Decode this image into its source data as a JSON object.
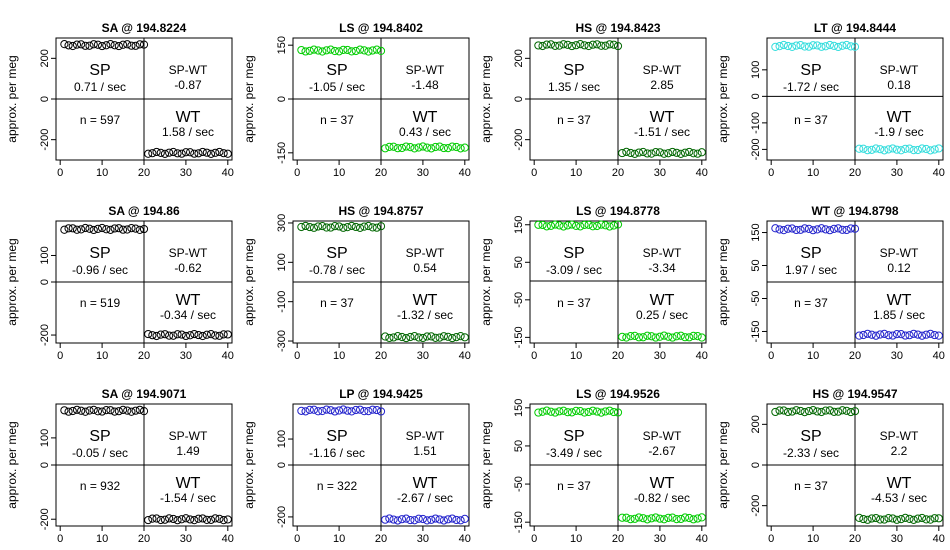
{
  "chart_data": [
    {
      "type": "scatter",
      "title": "SA @ 194.8224",
      "ylabel": "approx. per meg",
      "xlim": [
        -1,
        41
      ],
      "ylim": [
        -300,
        300
      ],
      "xticks": [
        0,
        10,
        20,
        30,
        40
      ],
      "yticks": [
        -200,
        0,
        200
      ],
      "left_level": 265,
      "right_level": -265,
      "left_color": "#000000",
      "right_color": "#000000",
      "sp_label": "SP",
      "sp_rate": "0.71 / sec",
      "spwt_label": "SP-WT",
      "spwt_value": "-0.87",
      "n_label": "n = 597",
      "wt_label": "WT",
      "wt_rate": "1.58 / sec"
    },
    {
      "type": "scatter",
      "title": "LS @ 194.8402",
      "ylabel": "approx. per meg",
      "xlim": [
        -1,
        41
      ],
      "ylim": [
        -170,
        170
      ],
      "xticks": [
        0,
        10,
        20,
        30,
        40
      ],
      "yticks": [
        -150,
        0,
        150
      ],
      "left_level": 135,
      "right_level": -135,
      "left_color": "#00cc00",
      "right_color": "#00cc00",
      "sp_label": "SP",
      "sp_rate": "-1.05 / sec",
      "spwt_label": "SP-WT",
      "spwt_value": "-1.48",
      "n_label": "n = 37",
      "wt_label": "WT",
      "wt_rate": "0.43 / sec"
    },
    {
      "type": "scatter",
      "title": "HS @ 194.8423",
      "ylabel": "approx. per meg",
      "xlim": [
        -1,
        41
      ],
      "ylim": [
        -300,
        300
      ],
      "xticks": [
        0,
        10,
        20,
        30,
        40
      ],
      "yticks": [
        -200,
        0,
        200
      ],
      "left_level": 265,
      "right_level": -265,
      "left_color": "#006600",
      "right_color": "#006600",
      "sp_label": "SP",
      "sp_rate": "1.35 / sec",
      "spwt_label": "SP-WT",
      "spwt_value": "2.85",
      "n_label": "n = 37",
      "wt_label": "WT",
      "wt_rate": "-1.51 / sec"
    },
    {
      "type": "scatter",
      "title": "LT @ 194.8444",
      "ylabel": "approx. per meg",
      "xlim": [
        -1,
        41
      ],
      "ylim": [
        -240,
        220
      ],
      "xticks": [
        0,
        10,
        20,
        30,
        40
      ],
      "yticks": [
        -200,
        -100,
        0,
        100
      ],
      "left_level": 190,
      "right_level": -200,
      "left_color": "#33dddd",
      "right_color": "#33dddd",
      "sp_label": "SP",
      "sp_rate": "-1.72 / sec",
      "spwt_label": "SP-WT",
      "spwt_value": "0.18",
      "n_label": "n = 37",
      "wt_label": "WT",
      "wt_rate": "-1.9 / sec"
    },
    {
      "type": "scatter",
      "title": "SA @ 194.86",
      "ylabel": "approx. per meg",
      "xlim": [
        -1,
        41
      ],
      "ylim": [
        -230,
        230
      ],
      "xticks": [
        0,
        10,
        20,
        30,
        40
      ],
      "yticks": [
        -200,
        0,
        100
      ],
      "left_level": 200,
      "right_level": -200,
      "left_color": "#000000",
      "right_color": "#000000",
      "sp_label": "SP",
      "sp_rate": "-0.96 / sec",
      "spwt_label": "SP-WT",
      "spwt_value": "-0.62",
      "n_label": "n = 519",
      "wt_label": "WT",
      "wt_rate": "-0.34 / sec"
    },
    {
      "type": "scatter",
      "title": "HS @ 194.8757",
      "ylabel": "approx. per meg",
      "xlim": [
        -1,
        41
      ],
      "ylim": [
        -310,
        310
      ],
      "xticks": [
        0,
        10,
        20,
        30,
        40
      ],
      "yticks": [
        -300,
        -100,
        100,
        300
      ],
      "left_level": 280,
      "right_level": -280,
      "left_color": "#006600",
      "right_color": "#006600",
      "sp_label": "SP",
      "sp_rate": "-0.78 / sec",
      "spwt_label": "SP-WT",
      "spwt_value": "0.54",
      "n_label": "n = 37",
      "wt_label": "WT",
      "wt_rate": "-1.32 / sec"
    },
    {
      "type": "scatter",
      "title": "LS @ 194.8778",
      "ylabel": "approx. per meg",
      "xlim": [
        -1,
        41
      ],
      "ylim": [
        -165,
        160
      ],
      "xticks": [
        0,
        10,
        20,
        30,
        40
      ],
      "yticks": [
        -150,
        -50,
        50,
        150
      ],
      "left_level": 148,
      "right_level": -148,
      "left_color": "#00cc00",
      "right_color": "#00cc00",
      "sp_label": "SP",
      "sp_rate": "-3.09 / sec",
      "spwt_label": "SP-WT",
      "spwt_value": "-3.34",
      "n_label": "n = 37",
      "wt_label": "WT",
      "wt_rate": "0.25 / sec"
    },
    {
      "type": "scatter",
      "title": "WT @ 194.8798",
      "ylabel": "approx. per meg",
      "xlim": [
        -1,
        41
      ],
      "ylim": [
        -185,
        185
      ],
      "xticks": [
        0,
        10,
        20,
        30,
        40
      ],
      "yticks": [
        -150,
        -50,
        50,
        150
      ],
      "left_level": 160,
      "right_level": -160,
      "left_color": "#2222cc",
      "right_color": "#2222cc",
      "sp_label": "SP",
      "sp_rate": "1.97 / sec",
      "spwt_label": "SP-WT",
      "spwt_value": "0.12",
      "n_label": "n = 37",
      "wt_label": "WT",
      "wt_rate": "1.85 / sec"
    },
    {
      "type": "scatter",
      "title": "SA @ 194.9071",
      "ylabel": "approx. per meg",
      "xlim": [
        -1,
        41
      ],
      "ylim": [
        -225,
        225
      ],
      "xticks": [
        0,
        10,
        20,
        30,
        40
      ],
      "yticks": [
        -200,
        0,
        100
      ],
      "left_level": 200,
      "right_level": -200,
      "left_color": "#000000",
      "right_color": "#000000",
      "sp_label": "SP",
      "sp_rate": "-0.05 / sec",
      "spwt_label": "SP-WT",
      "spwt_value": "1.49",
      "n_label": "n = 932",
      "wt_label": "WT",
      "wt_rate": "-1.54 / sec"
    },
    {
      "type": "scatter",
      "title": "LP @ 194.9425",
      "ylabel": "approx. per meg",
      "xlim": [
        -1,
        41
      ],
      "ylim": [
        -235,
        235
      ],
      "xticks": [
        0,
        10,
        20,
        30,
        40
      ],
      "yticks": [
        -200,
        0,
        100
      ],
      "left_level": 210,
      "right_level": -210,
      "left_color": "#2222cc",
      "right_color": "#2222cc",
      "sp_label": "SP",
      "sp_rate": "-1.16 / sec",
      "spwt_label": "SP-WT",
      "spwt_value": "1.51",
      "n_label": "n = 322",
      "wt_label": "WT",
      "wt_rate": "-2.67 / sec"
    },
    {
      "type": "scatter",
      "title": "LS @ 194.9526",
      "ylabel": "approx. per meg",
      "xlim": [
        -1,
        41
      ],
      "ylim": [
        -160,
        160
      ],
      "xticks": [
        0,
        10,
        20,
        30,
        40
      ],
      "yticks": [
        -150,
        -50,
        50,
        150
      ],
      "left_level": 140,
      "right_level": -140,
      "left_color": "#00cc00",
      "right_color": "#00cc00",
      "sp_label": "SP",
      "sp_rate": "-3.49 / sec",
      "spwt_label": "SP-WT",
      "spwt_value": "-2.67",
      "n_label": "n = 37",
      "wt_label": "WT",
      "wt_rate": "-0.82 / sec"
    },
    {
      "type": "scatter",
      "title": "HS @ 194.9547",
      "ylabel": "approx. per meg",
      "xlim": [
        -1,
        41
      ],
      "ylim": [
        -300,
        300
      ],
      "xticks": [
        0,
        10,
        20,
        30,
        40
      ],
      "yticks": [
        -200,
        0,
        200
      ],
      "left_level": 265,
      "right_level": -265,
      "left_color": "#006600",
      "right_color": "#006600",
      "sp_label": "SP",
      "sp_rate": "-2.33 / sec",
      "spwt_label": "SP-WT",
      "spwt_value": "2.2",
      "n_label": "n = 37",
      "wt_label": "WT",
      "wt_rate": "-4.53 / sec"
    }
  ]
}
